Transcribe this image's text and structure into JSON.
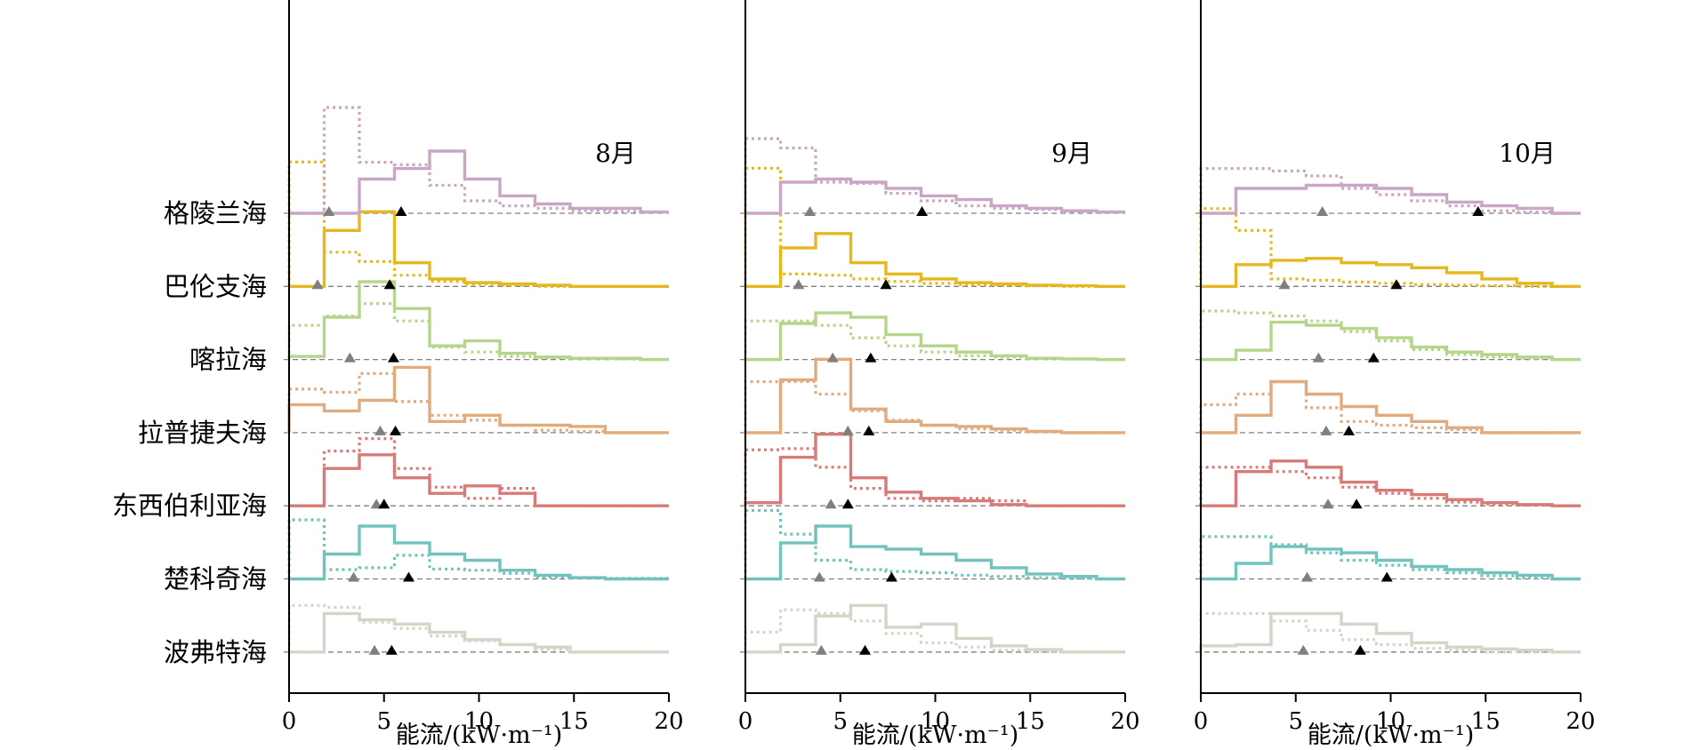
{
  "chart_data": {
    "type": "histogram-ridgeline",
    "regions": [
      "格陵兰海",
      "巴伦支海",
      "喀拉海",
      "拉普捷夫海",
      "东西伯利亚海",
      "楚科奇海",
      "波弗特海"
    ],
    "region_colors": [
      "#c9a6c4",
      "#e6b81f",
      "#b5d58a",
      "#e0ab7e",
      "#d77a78",
      "#72c2bd",
      "#d6d4c8"
    ],
    "marker_colors": {
      "gray": "#7f7f7f",
      "black": "#000000"
    },
    "bin_width": 1.85,
    "xlim": [
      0,
      20
    ],
    "xticks": [
      0,
      5,
      10,
      15,
      20
    ],
    "xlabel": "能流/(kW·m⁻¹)",
    "panels": [
      {
        "title": "8月",
        "series": [
          {
            "region": "格陵兰海",
            "solid": [
              0,
              0,
              0.55,
              0.72,
              1.0,
              0.55,
              0.28,
              0.15,
              0.08,
              0.08,
              0.02
            ],
            "dotted": [
              0,
              1.7,
              0.82,
              0.78,
              0.45,
              0.2,
              0.12,
              0.08,
              0.04,
              0.03,
              0.02
            ],
            "marker_gray": 2.1,
            "marker_black": 5.9
          },
          {
            "region": "巴伦支海",
            "solid": [
              0,
              0.9,
              1.2,
              0.38,
              0.12,
              0.06,
              0.04,
              0.02,
              0,
              0,
              0
            ],
            "dotted": [
              2.0,
              0.55,
              0.4,
              0.18,
              0.08,
              0.04,
              0.02,
              0,
              0,
              0,
              0
            ],
            "marker_gray": 1.5,
            "marker_black": 5.3
          },
          {
            "region": "喀拉海",
            "solid": [
              0.05,
              0.68,
              1.25,
              0.82,
              0.22,
              0.3,
              0.1,
              0.04,
              0.02,
              0.02,
              0
            ],
            "dotted": [
              0.55,
              0.7,
              0.9,
              0.62,
              0.2,
              0.12,
              0.05,
              0.03,
              0.02,
              0.01,
              0
            ],
            "marker_gray": 3.2,
            "marker_black": 5.5
          },
          {
            "region": "拉普捷夫海",
            "solid": [
              0.45,
              0.35,
              0.52,
              1.05,
              0.18,
              0.28,
              0.12,
              0.12,
              0.1,
              0,
              0
            ],
            "dotted": [
              0.7,
              0.65,
              0.95,
              0.5,
              0.28,
              0.2,
              0.12,
              0.04,
              0.02,
              0,
              0
            ],
            "marker_gray": 4.8,
            "marker_black": 5.6
          },
          {
            "region": "东西伯利亚海",
            "solid": [
              0,
              0.6,
              0.82,
              0.45,
              0.2,
              0.32,
              0.2,
              0.0,
              0,
              0,
              0
            ],
            "dotted": [
              0,
              0.88,
              1.08,
              0.6,
              0.3,
              0.12,
              0.28,
              0,
              0,
              0,
              0
            ],
            "marker_gray": 4.6,
            "marker_black": 5.0
          },
          {
            "region": "楚科奇海",
            "solid": [
              0,
              0.4,
              0.85,
              0.58,
              0.4,
              0.3,
              0.14,
              0.06,
              0.02,
              0,
              0
            ],
            "dotted": [
              0.95,
              0.15,
              0.18,
              0.38,
              0.16,
              0.14,
              0.09,
              0.03,
              0.02,
              0.01,
              0.01
            ],
            "marker_gray": 3.4,
            "marker_black": 6.3
          },
          {
            "region": "波弗特海",
            "solid": [
              0,
              0.62,
              0.52,
              0.45,
              0.32,
              0.2,
              0.12,
              0.08,
              0,
              0,
              0
            ],
            "dotted": [
              0.75,
              0.72,
              0.48,
              0.38,
              0.26,
              0.18,
              0.12,
              0.04,
              0,
              0,
              0
            ],
            "marker_gray": 4.5,
            "marker_black": 5.4
          }
        ]
      },
      {
        "title": "9月",
        "series": [
          {
            "region": "格陵兰海",
            "solid": [
              0,
              0.5,
              0.55,
              0.5,
              0.4,
              0.28,
              0.22,
              0.12,
              0.08,
              0.04,
              0.02
            ],
            "dotted": [
              1.2,
              1.05,
              0.5,
              0.48,
              0.32,
              0.2,
              0.12,
              0.08,
              0.06,
              0.03,
              0.02
            ],
            "marker_gray": 3.4,
            "marker_black": 9.3
          },
          {
            "region": "巴伦支海",
            "solid": [
              0,
              0.62,
              0.85,
              0.38,
              0.2,
              0.12,
              0.06,
              0.04,
              0.02,
              0.01,
              0
            ],
            "dotted": [
              1.9,
              0.2,
              0.18,
              0.12,
              0.08,
              0.05,
              0.03,
              0.02,
              0.01,
              0,
              0
            ],
            "marker_gray": 2.8,
            "marker_black": 7.4
          },
          {
            "region": "喀拉海",
            "solid": [
              0,
              0.58,
              0.75,
              0.68,
              0.4,
              0.22,
              0.12,
              0.06,
              0.02,
              0.01,
              0
            ],
            "dotted": [
              0.62,
              0.62,
              0.55,
              0.35,
              0.22,
              0.12,
              0.06,
              0.04,
              0.02,
              0.01,
              0
            ],
            "marker_gray": 4.6,
            "marker_black": 6.6
          },
          {
            "region": "拉普捷夫海",
            "solid": [
              0,
              0.85,
              1.18,
              0.38,
              0.18,
              0.12,
              0.1,
              0.06,
              0.02,
              0,
              0
            ],
            "dotted": [
              0.82,
              0.82,
              0.62,
              0.35,
              0.2,
              0.12,
              0.06,
              0.04,
              0.02,
              0,
              0
            ],
            "marker_gray": 5.4,
            "marker_black": 6.5
          },
          {
            "region": "东西伯利亚海",
            "solid": [
              0.05,
              0.78,
              1.15,
              0.45,
              0.22,
              0.12,
              0.08,
              0.02,
              0.0,
              0,
              0
            ],
            "dotted": [
              0.9,
              0.92,
              0.62,
              0.28,
              0.12,
              0.08,
              0.12,
              0.08,
              0,
              0,
              0
            ],
            "marker_gray": 4.5,
            "marker_black": 5.4
          },
          {
            "region": "楚科奇海",
            "solid": [
              0,
              0.58,
              0.85,
              0.52,
              0.48,
              0.4,
              0.3,
              0.18,
              0.08,
              0.04,
              0
            ],
            "dotted": [
              1.1,
              0.72,
              0.3,
              0.15,
              0.12,
              0.1,
              0.06,
              0.04,
              0.02,
              0.01,
              0
            ],
            "marker_gray": 3.9,
            "marker_black": 7.7
          },
          {
            "region": "波弗特海",
            "solid": [
              0,
              0.12,
              0.58,
              0.75,
              0.4,
              0.45,
              0.22,
              0.1,
              0.04,
              0,
              0
            ],
            "dotted": [
              0.32,
              0.68,
              0.62,
              0.5,
              0.3,
              0.15,
              0.08,
              0.03,
              0,
              0,
              0
            ],
            "marker_gray": 4.0,
            "marker_black": 6.3
          }
        ]
      },
      {
        "title": "10月",
        "series": [
          {
            "region": "格陵兰海",
            "solid": [
              0,
              0.4,
              0.4,
              0.45,
              0.45,
              0.4,
              0.3,
              0.18,
              0.12,
              0.08,
              0
            ],
            "dotted": [
              0.72,
              0.72,
              0.68,
              0.6,
              0.4,
              0.3,
              0.2,
              0.12,
              0.04,
              0.02,
              0
            ],
            "marker_gray": 6.4,
            "marker_black": 14.6
          },
          {
            "region": "巴伦支海",
            "solid": [
              0,
              0.35,
              0.42,
              0.45,
              0.38,
              0.35,
              0.3,
              0.22,
              0.12,
              0.05,
              0
            ],
            "dotted": [
              1.25,
              0.9,
              0.12,
              0.1,
              0.07,
              0.05,
              0.03,
              0.02,
              0.01,
              0,
              0
            ],
            "marker_gray": 4.4,
            "marker_black": 10.3
          },
          {
            "region": "喀拉海",
            "solid": [
              0,
              0.15,
              0.6,
              0.55,
              0.5,
              0.35,
              0.2,
              0.12,
              0.08,
              0.04,
              0
            ],
            "dotted": [
              0.78,
              0.75,
              0.7,
              0.62,
              0.45,
              0.3,
              0.16,
              0.08,
              0.04,
              0.02,
              0
            ],
            "marker_gray": 6.2,
            "marker_black": 9.1
          },
          {
            "region": "拉普捷夫海",
            "solid": [
              0,
              0.28,
              0.82,
              0.62,
              0.42,
              0.28,
              0.18,
              0.08,
              0,
              0,
              0
            ],
            "dotted": [
              0.45,
              0.62,
              0.82,
              0.4,
              0.18,
              0.12,
              0.08,
              0.05,
              0,
              0,
              0
            ],
            "marker_gray": 6.6,
            "marker_black": 7.8
          },
          {
            "region": "东西伯利亚海",
            "solid": [
              0,
              0.55,
              0.72,
              0.62,
              0.38,
              0.25,
              0.18,
              0.1,
              0.05,
              0.02,
              0
            ],
            "dotted": [
              0.62,
              0.62,
              0.55,
              0.45,
              0.3,
              0.2,
              0.12,
              0.06,
              0.03,
              0.01,
              0
            ],
            "marker_gray": 6.7,
            "marker_black": 8.2
          },
          {
            "region": "楚科奇海",
            "solid": [
              0,
              0.25,
              0.52,
              0.48,
              0.42,
              0.3,
              0.2,
              0.15,
              0.1,
              0.06,
              0
            ],
            "dotted": [
              0.68,
              0.68,
              0.55,
              0.42,
              0.3,
              0.22,
              0.15,
              0.1,
              0.05,
              0.02,
              0
            ],
            "marker_gray": 5.6,
            "marker_black": 9.8
          },
          {
            "region": "波弗特海",
            "solid": [
              0.1,
              0.12,
              0.62,
              0.62,
              0.45,
              0.3,
              0.15,
              0.08,
              0.05,
              0.03,
              0
            ],
            "dotted": [
              0.62,
              0.62,
              0.5,
              0.35,
              0.2,
              0.12,
              0.06,
              0.03,
              0,
              0,
              0
            ],
            "marker_gray": 5.4,
            "marker_black": 8.4
          }
        ]
      }
    ]
  }
}
